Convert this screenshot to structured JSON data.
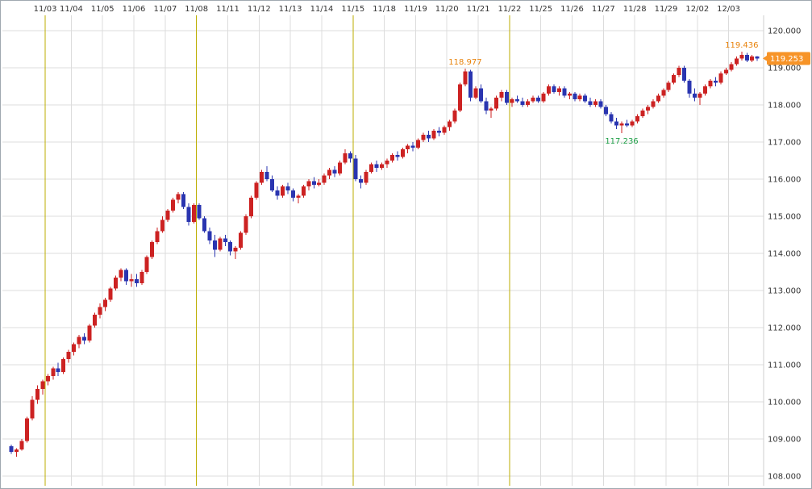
{
  "chart_data": {
    "type": "candlestick",
    "title": "",
    "y_axis": {
      "min": 108,
      "max": 120,
      "step": 1,
      "ticks": [
        "120.000",
        "119.000",
        "118.000",
        "117.000",
        "116.000",
        "115.000",
        "114.000",
        "113.000",
        "112.000",
        "111.000",
        "110.000",
        "109.000",
        "108.000"
      ]
    },
    "day_starts": [
      {
        "label": "11/03",
        "index": 7,
        "week_start": true
      },
      {
        "label": "11/04",
        "index": 12
      },
      {
        "label": "11/05",
        "index": 18
      },
      {
        "label": "11/06",
        "index": 24
      },
      {
        "label": "11/07",
        "index": 30
      },
      {
        "label": "11/08",
        "index": 36,
        "week_start": true
      },
      {
        "label": "11/11",
        "index": 42
      },
      {
        "label": "11/12",
        "index": 48
      },
      {
        "label": "11/13",
        "index": 54
      },
      {
        "label": "11/14",
        "index": 60
      },
      {
        "label": "11/15",
        "index": 66,
        "week_start": true
      },
      {
        "label": "11/18",
        "index": 72
      },
      {
        "label": "11/19",
        "index": 78
      },
      {
        "label": "11/20",
        "index": 84
      },
      {
        "label": "11/21",
        "index": 90
      },
      {
        "label": "11/22",
        "index": 96,
        "week_start": true
      },
      {
        "label": "11/25",
        "index": 102
      },
      {
        "label": "11/26",
        "index": 108
      },
      {
        "label": "11/27",
        "index": 114
      },
      {
        "label": "11/28",
        "index": 120
      },
      {
        "label": "11/29",
        "index": 126
      },
      {
        "label": "12/02",
        "index": 132
      },
      {
        "label": "12/03",
        "index": 138
      }
    ],
    "candles": [
      [
        108.8,
        108.85,
        108.6,
        108.65
      ],
      [
        108.65,
        108.75,
        108.52,
        108.72
      ],
      [
        108.72,
        109.0,
        108.68,
        108.95
      ],
      [
        108.95,
        109.6,
        108.9,
        109.55
      ],
      [
        109.55,
        110.15,
        109.5,
        110.05
      ],
      [
        110.05,
        110.45,
        109.95,
        110.35
      ],
      [
        110.35,
        110.6,
        110.2,
        110.55
      ],
      [
        110.55,
        110.75,
        110.45,
        110.7
      ],
      [
        110.7,
        110.95,
        110.6,
        110.9
      ],
      [
        110.9,
        111.05,
        110.7,
        110.8
      ],
      [
        110.8,
        111.2,
        110.75,
        111.15
      ],
      [
        111.15,
        111.4,
        111.05,
        111.35
      ],
      [
        111.35,
        111.6,
        111.25,
        111.55
      ],
      [
        111.55,
        111.8,
        111.45,
        111.75
      ],
      [
        111.75,
        111.85,
        111.55,
        111.65
      ],
      [
        111.65,
        112.1,
        111.6,
        112.05
      ],
      [
        112.05,
        112.4,
        112.0,
        112.35
      ],
      [
        112.35,
        112.65,
        112.25,
        112.55
      ],
      [
        112.55,
        112.8,
        112.45,
        112.75
      ],
      [
        112.75,
        113.1,
        112.7,
        113.05
      ],
      [
        113.05,
        113.4,
        113.0,
        113.35
      ],
      [
        113.35,
        113.6,
        113.25,
        113.55
      ],
      [
        113.55,
        113.6,
        113.15,
        113.25
      ],
      [
        113.25,
        113.45,
        113.1,
        113.3
      ],
      [
        113.3,
        113.45,
        113.1,
        113.2
      ],
      [
        113.2,
        113.55,
        113.15,
        113.5
      ],
      [
        113.5,
        113.95,
        113.45,
        113.9
      ],
      [
        113.9,
        114.35,
        113.85,
        114.3
      ],
      [
        114.3,
        114.7,
        114.25,
        114.6
      ],
      [
        114.6,
        115.0,
        114.55,
        114.9
      ],
      [
        114.9,
        115.2,
        114.85,
        115.15
      ],
      [
        115.15,
        115.5,
        115.1,
        115.45
      ],
      [
        115.45,
        115.65,
        115.35,
        115.6
      ],
      [
        115.6,
        115.65,
        115.2,
        115.25
      ],
      [
        115.25,
        115.35,
        114.75,
        114.85
      ],
      [
        114.85,
        115.35,
        114.8,
        115.3
      ],
      [
        115.3,
        115.35,
        114.9,
        114.95
      ],
      [
        114.95,
        115.0,
        114.55,
        114.6
      ],
      [
        114.6,
        114.7,
        114.25,
        114.35
      ],
      [
        114.35,
        114.5,
        113.9,
        114.1
      ],
      [
        114.1,
        114.45,
        114.05,
        114.4
      ],
      [
        114.4,
        114.5,
        114.2,
        114.3
      ],
      [
        114.3,
        114.35,
        113.95,
        114.05
      ],
      [
        114.05,
        114.2,
        113.85,
        114.15
      ],
      [
        114.15,
        114.6,
        114.1,
        114.55
      ],
      [
        114.55,
        115.05,
        114.5,
        115.0
      ],
      [
        115.0,
        115.55,
        114.95,
        115.5
      ],
      [
        115.5,
        115.95,
        115.45,
        115.9
      ],
      [
        115.9,
        116.25,
        115.85,
        116.2
      ],
      [
        116.2,
        116.35,
        115.95,
        116.0
      ],
      [
        116.0,
        116.1,
        115.65,
        115.7
      ],
      [
        115.7,
        115.8,
        115.45,
        115.55
      ],
      [
        115.55,
        115.85,
        115.5,
        115.8
      ],
      [
        115.8,
        115.9,
        115.6,
        115.7
      ],
      [
        115.7,
        115.75,
        115.4,
        115.5
      ],
      [
        115.5,
        115.6,
        115.35,
        115.55
      ],
      [
        115.55,
        115.85,
        115.5,
        115.8
      ],
      [
        115.8,
        116.0,
        115.7,
        115.95
      ],
      [
        115.95,
        116.05,
        115.75,
        115.85
      ],
      [
        115.85,
        116.0,
        115.8,
        115.9
      ],
      [
        115.9,
        116.15,
        115.85,
        116.1
      ],
      [
        116.1,
        116.3,
        116.0,
        116.25
      ],
      [
        116.25,
        116.35,
        116.05,
        116.15
      ],
      [
        116.15,
        116.5,
        116.1,
        116.45
      ],
      [
        116.45,
        116.8,
        116.4,
        116.7
      ],
      [
        116.7,
        116.75,
        116.45,
        116.55
      ],
      [
        116.55,
        116.65,
        115.95,
        116.0
      ],
      [
        116.0,
        116.1,
        115.75,
        115.9
      ],
      [
        115.9,
        116.25,
        115.85,
        116.2
      ],
      [
        116.2,
        116.45,
        116.15,
        116.4
      ],
      [
        116.4,
        116.5,
        116.2,
        116.3
      ],
      [
        116.3,
        116.45,
        116.25,
        116.4
      ],
      [
        116.4,
        116.55,
        116.3,
        116.5
      ],
      [
        116.5,
        116.7,
        116.45,
        116.65
      ],
      [
        116.65,
        116.75,
        116.5,
        116.6
      ],
      [
        116.6,
        116.85,
        116.55,
        116.8
      ],
      [
        116.8,
        116.95,
        116.7,
        116.9
      ],
      [
        116.9,
        117.0,
        116.75,
        116.85
      ],
      [
        116.85,
        117.1,
        116.8,
        117.05
      ],
      [
        117.05,
        117.25,
        117.0,
        117.2
      ],
      [
        117.2,
        117.3,
        117.0,
        117.1
      ],
      [
        117.1,
        117.35,
        117.05,
        117.3
      ],
      [
        117.3,
        117.4,
        117.15,
        117.25
      ],
      [
        117.25,
        117.45,
        117.2,
        117.4
      ],
      [
        117.4,
        117.6,
        117.3,
        117.55
      ],
      [
        117.55,
        117.9,
        117.5,
        117.85
      ],
      [
        117.85,
        118.6,
        117.8,
        118.55
      ],
      [
        118.55,
        118.977,
        118.5,
        118.9
      ],
      [
        118.9,
        118.95,
        118.1,
        118.2
      ],
      [
        118.2,
        118.5,
        118.15,
        118.45
      ],
      [
        118.45,
        118.55,
        118.05,
        118.1
      ],
      [
        118.1,
        118.2,
        117.75,
        117.85
      ],
      [
        117.85,
        117.95,
        117.65,
        117.9
      ],
      [
        117.9,
        118.25,
        117.85,
        118.2
      ],
      [
        118.2,
        118.4,
        118.1,
        118.35
      ],
      [
        118.35,
        118.4,
        118.0,
        118.05
      ],
      [
        118.05,
        118.2,
        117.95,
        118.15
      ],
      [
        118.15,
        118.25,
        118.05,
        118.1
      ],
      [
        118.1,
        118.2,
        117.95,
        118.0
      ],
      [
        118.0,
        118.15,
        117.95,
        118.1
      ],
      [
        118.1,
        118.25,
        118.05,
        118.2
      ],
      [
        118.2,
        118.25,
        118.05,
        118.1
      ],
      [
        118.1,
        118.35,
        118.05,
        118.3
      ],
      [
        118.3,
        118.55,
        118.25,
        118.5
      ],
      [
        118.5,
        118.55,
        118.3,
        118.35
      ],
      [
        118.35,
        118.5,
        118.25,
        118.45
      ],
      [
        118.45,
        118.5,
        118.2,
        118.25
      ],
      [
        118.25,
        118.35,
        118.15,
        118.3
      ],
      [
        118.3,
        118.35,
        118.1,
        118.15
      ],
      [
        118.15,
        118.3,
        118.1,
        118.25
      ],
      [
        118.25,
        118.3,
        118.05,
        118.1
      ],
      [
        118.1,
        118.2,
        117.95,
        118.0
      ],
      [
        118.0,
        118.15,
        117.95,
        118.1
      ],
      [
        118.1,
        118.15,
        117.9,
        117.95
      ],
      [
        117.95,
        118.0,
        117.7,
        117.75
      ],
      [
        117.75,
        117.8,
        117.5,
        117.55
      ],
      [
        117.55,
        117.65,
        117.35,
        117.45
      ],
      [
        117.45,
        117.55,
        117.236,
        117.5
      ],
      [
        117.5,
        117.6,
        117.4,
        117.45
      ],
      [
        117.45,
        117.6,
        117.4,
        117.55
      ],
      [
        117.55,
        117.75,
        117.5,
        117.7
      ],
      [
        117.7,
        117.9,
        117.65,
        117.85
      ],
      [
        117.85,
        118.0,
        117.75,
        117.95
      ],
      [
        117.95,
        118.15,
        117.9,
        118.1
      ],
      [
        118.1,
        118.3,
        118.05,
        118.25
      ],
      [
        118.25,
        118.45,
        118.2,
        118.4
      ],
      [
        118.4,
        118.65,
        118.35,
        118.6
      ],
      [
        118.6,
        118.85,
        118.55,
        118.8
      ],
      [
        118.8,
        119.05,
        118.75,
        119.0
      ],
      [
        119.0,
        119.05,
        118.6,
        118.65
      ],
      [
        118.65,
        118.7,
        118.2,
        118.3
      ],
      [
        118.3,
        118.45,
        118.1,
        118.2
      ],
      [
        118.2,
        118.35,
        118.0,
        118.3
      ],
      [
        118.3,
        118.55,
        118.25,
        118.5
      ],
      [
        118.5,
        118.7,
        118.45,
        118.65
      ],
      [
        118.65,
        118.75,
        118.5,
        118.6
      ],
      [
        118.6,
        118.9,
        118.55,
        118.85
      ],
      [
        118.85,
        119.0,
        118.8,
        118.95
      ],
      [
        118.95,
        119.15,
        118.9,
        119.1
      ],
      [
        119.1,
        119.3,
        119.05,
        119.25
      ],
      [
        119.25,
        119.436,
        119.2,
        119.35
      ],
      [
        119.35,
        119.4,
        119.15,
        119.2
      ],
      [
        119.2,
        119.35,
        119.15,
        119.3
      ],
      [
        119.3,
        119.32,
        119.18,
        119.253
      ]
    ],
    "annotations": [
      {
        "text": "118.977",
        "price": 118.977,
        "candle_index": 87,
        "position": "above",
        "color": "#e8820a"
      },
      {
        "text": "117.236",
        "price": 117.236,
        "candle_index": 117,
        "position": "below",
        "color": "#1fa048"
      },
      {
        "text": "119.436",
        "price": 119.436,
        "candle_index": 140,
        "position": "above",
        "color": "#e8820a"
      }
    ],
    "current_price_tag": {
      "text": "119.253",
      "price": 119.253,
      "bg": "#f79428",
      "text_color": "#ffffff"
    },
    "colors": {
      "up": "#cc2222",
      "down": "#2a35b0",
      "grid": "#dcdcdc",
      "axis_border": "#cfcfcf",
      "week_line": "#bcae00",
      "axis_text": "#333333",
      "background": "#ffffff"
    }
  }
}
